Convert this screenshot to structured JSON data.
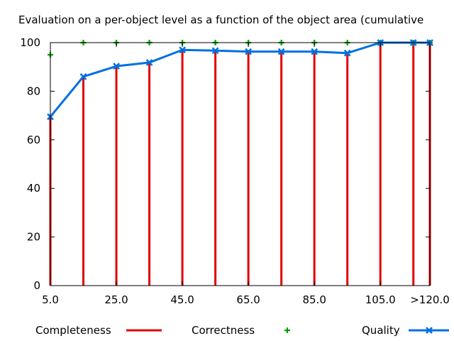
{
  "chart_data": {
    "type": "bar",
    "title": "Evaluation on a per-object level as a function of the object area (cumulative",
    "xlabel": "",
    "ylabel": "",
    "ylim": [
      0,
      100
    ],
    "yticks": [
      0,
      20,
      40,
      60,
      80,
      100
    ],
    "x": [
      5,
      15,
      25,
      35,
      45,
      55,
      65,
      75,
      85,
      95,
      105,
      115,
      120
    ],
    "xlim": [
      5,
      120
    ],
    "xtick_labels": [
      {
        "x": 5,
        "label": "5.0"
      },
      {
        "x": 25,
        "label": "25.0"
      },
      {
        "x": 45,
        "label": "45.0"
      },
      {
        "x": 65,
        "label": "65.0"
      },
      {
        "x": 85,
        "label": "85.0"
      },
      {
        "x": 105,
        "label": "105.0"
      },
      {
        "x": 120,
        "label": ">120.0"
      }
    ],
    "grid": false,
    "legend_placement": "bottom",
    "series": [
      {
        "name": "Completeness",
        "style": "impulses",
        "color": "#e00000",
        "values": [
          70,
          86,
          90.5,
          92,
          97.5,
          97,
          96.5,
          96.5,
          96.5,
          96,
          100,
          100,
          100
        ]
      },
      {
        "name": "Correctness",
        "style": "points",
        "color": "#00a000",
        "values": [
          95,
          100,
          100,
          100,
          100,
          100,
          100,
          100,
          100,
          100,
          100,
          100,
          100
        ]
      },
      {
        "name": "Quality",
        "style": "linespoints",
        "color": "#0070e0",
        "values": [
          69.5,
          86,
          90.3,
          91.8,
          97,
          96.7,
          96.3,
          96.3,
          96.3,
          95.7,
          100,
          100,
          100
        ]
      }
    ]
  }
}
